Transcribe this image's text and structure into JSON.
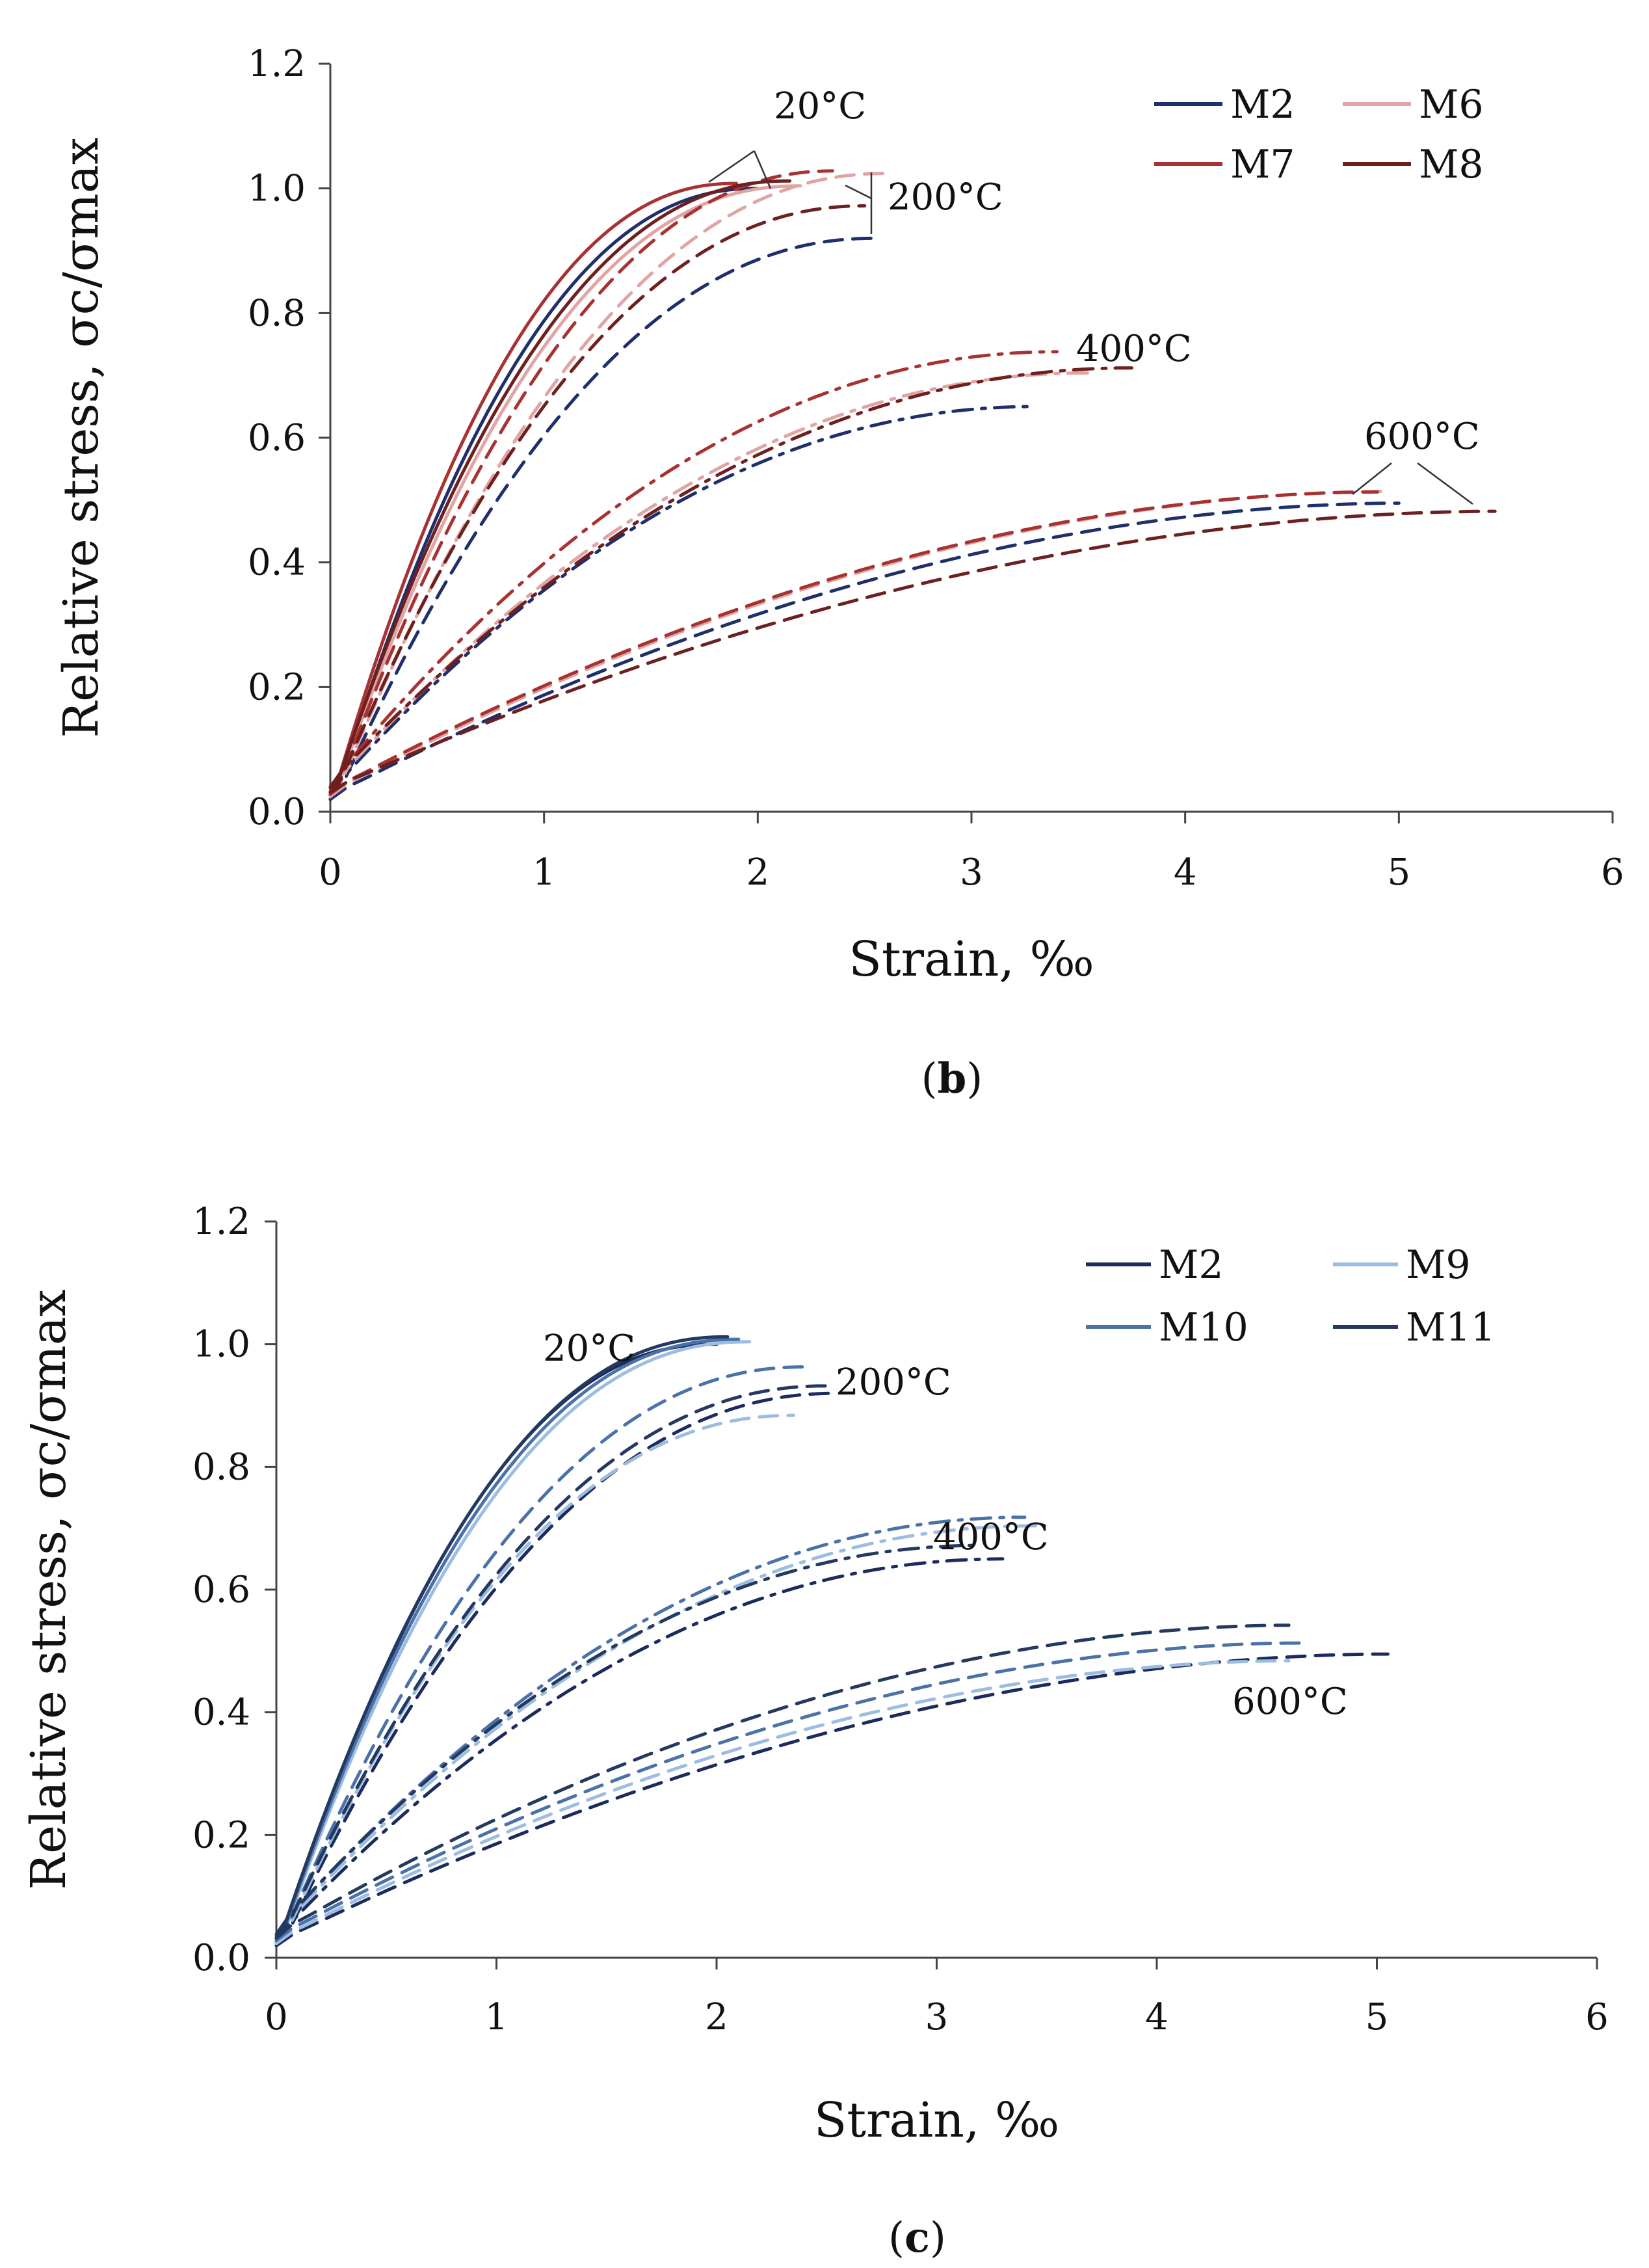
{
  "figure": {
    "panels": [
      {
        "caption_open": "(",
        "caption_letter": "b",
        "caption_close": ")",
        "legend_names": [
          "M2",
          "M6",
          "M7",
          "M8"
        ],
        "annotations": [
          "20°C",
          "200°C",
          "400°C",
          "600°C"
        ]
      },
      {
        "caption_open": "(",
        "caption_letter": "c",
        "caption_close": ")",
        "legend_names": [
          "M2",
          "M9",
          "M10",
          "M11"
        ],
        "annotations": [
          "20°C",
          "200°C",
          "400°C",
          "600°C"
        ]
      }
    ]
  },
  "chart_data": [
    {
      "type": "line",
      "panel": "b",
      "xlabel": "Strain, ‰",
      "ylabel": "Relative stress, σc/σmax",
      "xlim": [
        0,
        6
      ],
      "ylim": [
        0,
        1.2
      ],
      "x_ticks": [
        "0",
        "1",
        "2",
        "3",
        "4",
        "5",
        "6"
      ],
      "y_ticks": [
        "0.0",
        "0.2",
        "0.4",
        "0.6",
        "0.8",
        "1.0",
        "1.2"
      ],
      "grid": false,
      "legend_position": "top-right",
      "series": [
        {
          "name": "M2",
          "color": "#1f2f6b",
          "curves": [
            {
              "temp": "20°C",
              "dash": "solid",
              "peak": [
                2.0,
                1.0
              ]
            },
            {
              "temp": "200°C",
              "dash": "dashed",
              "peak": [
                2.55,
                0.92
              ]
            },
            {
              "temp": "400°C",
              "dash": "dashdot",
              "peak": [
                3.3,
                0.65
              ]
            },
            {
              "temp": "600°C",
              "dash": "dashed",
              "peak": [
                5.0,
                0.495
              ]
            }
          ]
        },
        {
          "name": "M6",
          "color": "#e2a3a3",
          "curves": [
            {
              "temp": "20°C",
              "dash": "solid",
              "peak": [
                2.2,
                1.0
              ]
            },
            {
              "temp": "200°C",
              "dash": "dashed",
              "peak": [
                2.6,
                1.02
              ]
            },
            {
              "temp": "400°C",
              "dash": "dashdot",
              "peak": [
                3.55,
                0.7
              ]
            },
            {
              "temp": "600°C",
              "dash": "dashed",
              "peak": [
                4.95,
                0.51
              ]
            }
          ]
        },
        {
          "name": "M7",
          "color": "#a83232",
          "curves": [
            {
              "temp": "20°C",
              "dash": "solid",
              "peak": [
                1.9,
                1.0
              ]
            },
            {
              "temp": "200°C",
              "dash": "dashed",
              "peak": [
                2.35,
                1.02
              ]
            },
            {
              "temp": "400°C",
              "dash": "dashdot",
              "peak": [
                3.4,
                0.73
              ]
            },
            {
              "temp": "600°C",
              "dash": "dashed",
              "peak": [
                4.9,
                0.505
              ]
            }
          ]
        },
        {
          "name": "M8",
          "color": "#6e1f1f",
          "curves": [
            {
              "temp": "20°C",
              "dash": "solid",
              "peak": [
                2.15,
                1.0
              ]
            },
            {
              "temp": "200°C",
              "dash": "dashed",
              "peak": [
                2.5,
                0.96
              ]
            },
            {
              "temp": "400°C",
              "dash": "dashdot",
              "peak": [
                3.75,
                0.7
              ]
            },
            {
              "temp": "600°C",
              "dash": "dashed",
              "peak": [
                5.45,
                0.47
              ]
            }
          ]
        }
      ]
    },
    {
      "type": "line",
      "panel": "c",
      "xlabel": "Strain, ‰",
      "ylabel": "Relative stress, σc/σmax",
      "xlim": [
        0,
        6
      ],
      "ylim": [
        0,
        1.2
      ],
      "x_ticks": [
        "0",
        "1",
        "2",
        "3",
        "4",
        "5",
        "6"
      ],
      "y_ticks": [
        "0.0",
        "0.2",
        "0.4",
        "0.6",
        "0.8",
        "1.0",
        "1.2"
      ],
      "grid": false,
      "legend_position": "top-right",
      "series": [
        {
          "name": "M2",
          "color": "#1c2b5e",
          "curves": [
            {
              "temp": "20°C",
              "dash": "solid",
              "peak": [
                2.0,
                1.0
              ]
            },
            {
              "temp": "200°C",
              "dash": "dashed",
              "peak": [
                2.55,
                0.92
              ]
            },
            {
              "temp": "400°C",
              "dash": "dashdot",
              "peak": [
                3.3,
                0.65
              ]
            },
            {
              "temp": "600°C",
              "dash": "dashed",
              "peak": [
                5.05,
                0.495
              ]
            }
          ]
        },
        {
          "name": "M9",
          "color": "#9dbde0",
          "curves": [
            {
              "temp": "20°C",
              "dash": "solid",
              "peak": [
                2.15,
                1.0
              ]
            },
            {
              "temp": "200°C",
              "dash": "dashed",
              "peak": [
                2.35,
                0.88
              ]
            },
            {
              "temp": "400°C",
              "dash": "dashdot",
              "peak": [
                3.45,
                0.7
              ]
            },
            {
              "temp": "600°C",
              "dash": "dashed",
              "peak": [
                4.6,
                0.48
              ]
            }
          ]
        },
        {
          "name": "M10",
          "color": "#4a72a8",
          "curves": [
            {
              "temp": "20°C",
              "dash": "solid",
              "peak": [
                2.1,
                1.0
              ]
            },
            {
              "temp": "200°C",
              "dash": "dashed",
              "peak": [
                2.4,
                0.955
              ]
            },
            {
              "temp": "400°C",
              "dash": "dashdot",
              "peak": [
                3.4,
                0.71
              ]
            },
            {
              "temp": "600°C",
              "dash": "dashed",
              "peak": [
                4.65,
                0.505
              ]
            }
          ]
        },
        {
          "name": "M11",
          "color": "#24395f",
          "curves": [
            {
              "temp": "20°C",
              "dash": "solid",
              "peak": [
                2.05,
                1.0
              ]
            },
            {
              "temp": "200°C",
              "dash": "dashed",
              "peak": [
                2.5,
                0.92
              ]
            },
            {
              "temp": "400°C",
              "dash": "dashdot",
              "peak": [
                3.2,
                0.66
              ]
            },
            {
              "temp": "600°C",
              "dash": "dashed",
              "peak": [
                4.6,
                0.53
              ]
            }
          ]
        }
      ]
    }
  ]
}
